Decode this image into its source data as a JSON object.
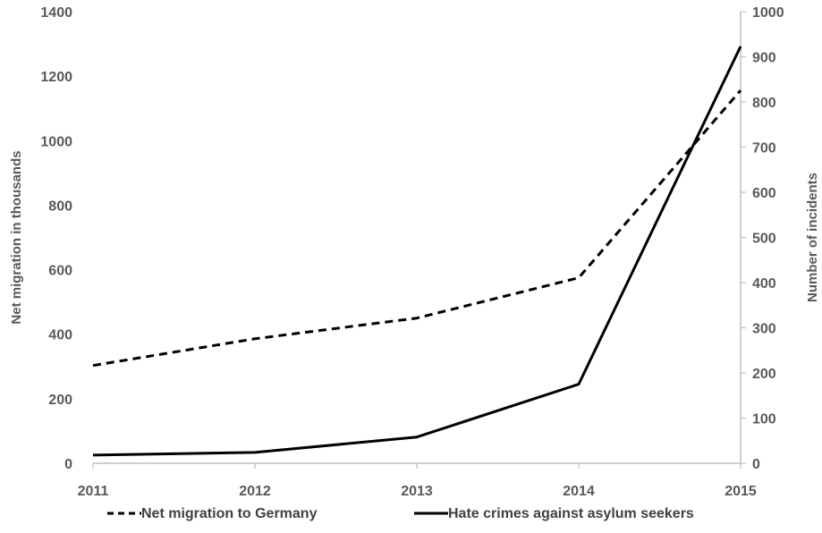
{
  "chart_data": {
    "type": "line",
    "title": "",
    "x": [
      "2011",
      "2012",
      "2013",
      "2014",
      "2015"
    ],
    "xlabel": "",
    "ylabel_left": "Net migration in thousands",
    "ylabel_right": "Number of incidents",
    "ylim_left": [
      0,
      1400
    ],
    "ylim_right": [
      0,
      1000
    ],
    "yticks_left": [
      "0",
      "200",
      "400",
      "600",
      "800",
      "1000",
      "1200",
      "1400"
    ],
    "yticks_right": [
      "0",
      "100",
      "200",
      "300",
      "400",
      "500",
      "600",
      "700",
      "800",
      "900",
      "1000"
    ],
    "grid": false,
    "legend_position": "bottom",
    "series": [
      {
        "name": "Net migration to Germany",
        "axis": "left",
        "style": "dashed",
        "color": "#000000",
        "values": [
          303,
          386,
          450,
          575,
          1156
        ]
      },
      {
        "name": "Hate crimes against asylum seekers",
        "axis": "right",
        "style": "solid",
        "color": "#000000",
        "values": [
          18,
          24,
          58,
          175,
          923
        ]
      }
    ]
  }
}
